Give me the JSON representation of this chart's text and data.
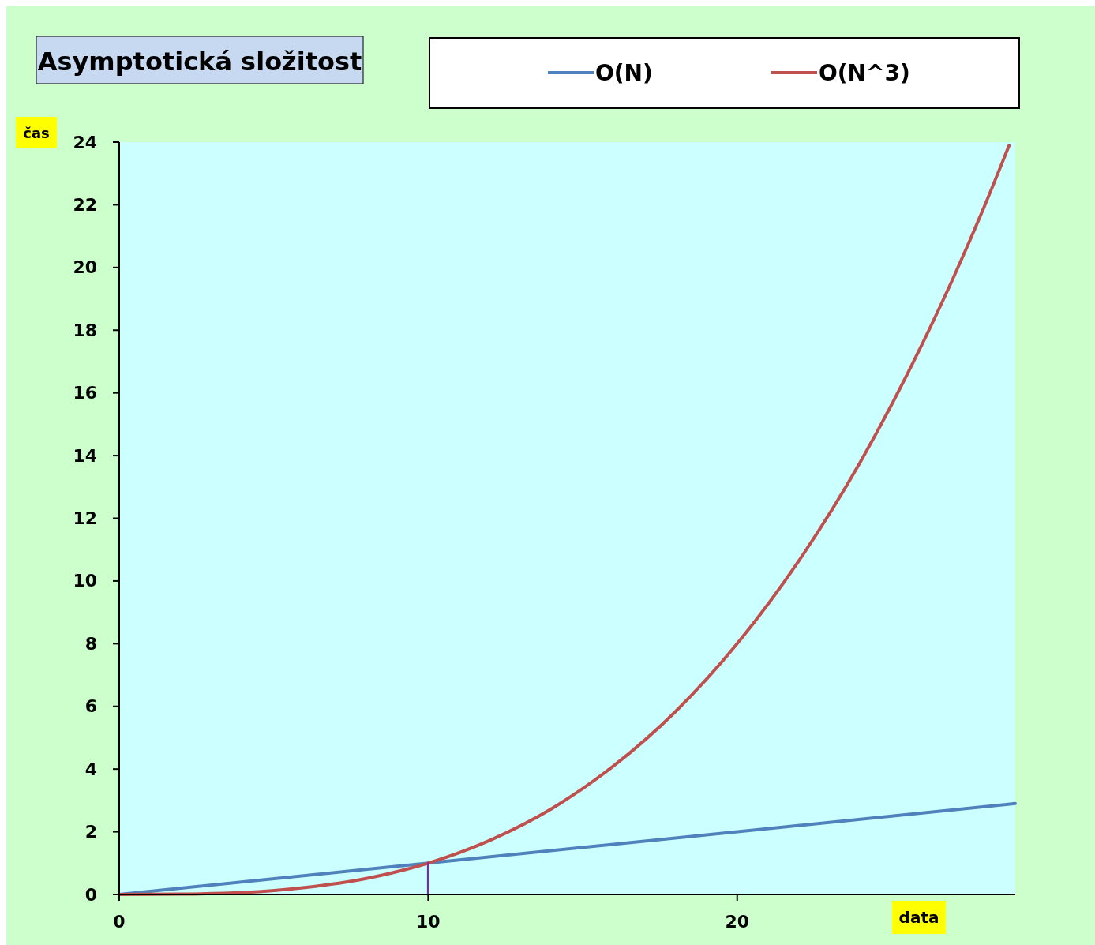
{
  "chart_data": {
    "type": "line",
    "title": "Asymptotická složitost",
    "xlabel": "data",
    "ylabel": "čas",
    "xlim": [
      0,
      29
    ],
    "xticks": [
      0,
      10,
      20
    ],
    "ylim": [
      0,
      24
    ],
    "yticks": [
      0,
      2,
      4,
      6,
      8,
      10,
      12,
      14,
      16,
      18,
      20,
      22,
      24
    ],
    "grid": false,
    "legend": "top",
    "marker": "none",
    "line_style": "solid",
    "series": [
      {
        "name": "O(N)",
        "color": "#4f81bd",
        "x": [
          0,
          29
        ],
        "values": [
          0,
          2.9
        ]
      },
      {
        "name": "O(N^3)",
        "color": "#c0504d",
        "x": [
          0,
          2,
          4,
          6,
          8,
          10,
          12,
          14,
          16,
          18,
          20,
          22,
          24,
          26,
          27,
          28,
          28.8
        ],
        "values": [
          0,
          0.01,
          0.06,
          0.22,
          0.51,
          1,
          1.73,
          2.74,
          4.1,
          5.83,
          8,
          10.65,
          13.82,
          17.58,
          19.68,
          21.95,
          23.89
        ]
      },
      {
        "color": "#7030a0",
        "x": [
          10,
          10
        ],
        "values": [
          0,
          1
        ]
      }
    ]
  }
}
